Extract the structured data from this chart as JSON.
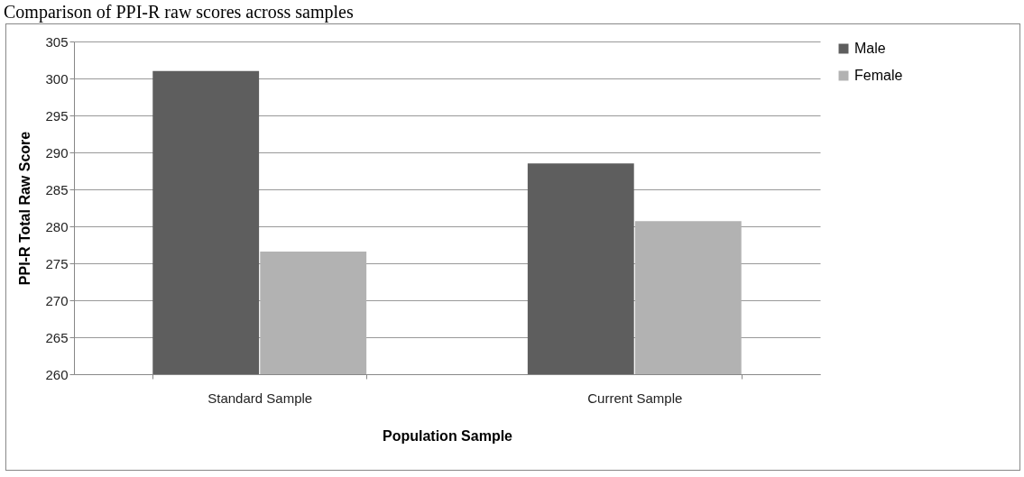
{
  "chart_data": {
    "type": "bar",
    "title": "Comparison of PPI-R raw scores across samples",
    "xlabel": "Population Sample",
    "ylabel": "PPI-R Total Raw Score",
    "categories": [
      "Standard Sample",
      "Current Sample"
    ],
    "series": [
      {
        "name": "Male",
        "color": "#5e5e5e",
        "values": [
          301.0,
          288.5
        ]
      },
      {
        "name": "Female",
        "color": "#b2b2b2",
        "values": [
          276.6,
          280.7
        ]
      }
    ],
    "ylim": [
      260,
      305
    ],
    "yticks": [
      260,
      265,
      270,
      275,
      280,
      285,
      290,
      295,
      300,
      305
    ],
    "grid": "y",
    "legend": "right"
  }
}
